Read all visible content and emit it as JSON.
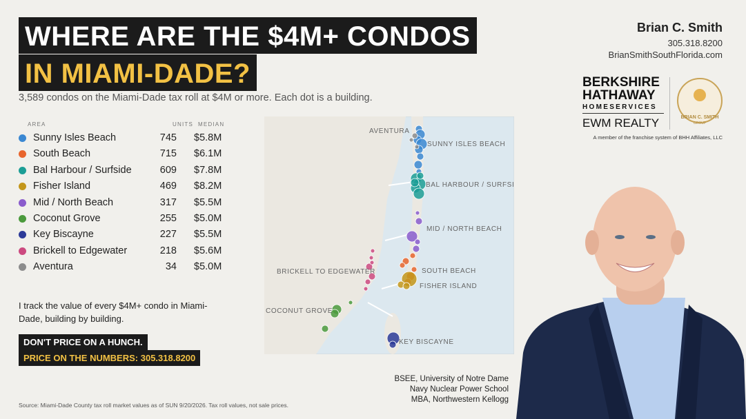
{
  "header": {
    "title_line1": "WHERE ARE THE $4M+ CONDOS",
    "title_line2": "IN MIAMI-DADE?",
    "subtitle": "3,589 condos on the Miami-Dade tax roll at $4M or more. Each dot is a building."
  },
  "contact": {
    "name": "Brian C. Smith",
    "phone": "305.318.8200",
    "website": "BrianSmithSouthFlorida.com"
  },
  "brokerage": {
    "line1": "BERKSHIRE",
    "line2": "HATHAWAY",
    "line3": "HOMESERVICES",
    "line4": "EWM REALTY",
    "badge_name": "BRIAN C. SMITH",
    "badge_group": "GROUP",
    "note": "A member of the franchise system of BHH Affiliates, LLC"
  },
  "table": {
    "columns": [
      "AREA",
      "UNITS",
      "MEDIAN"
    ],
    "rows": [
      {
        "area": "Sunny Isles Beach",
        "units": 745,
        "median": "$5.8M",
        "color": "#3b88d2"
      },
      {
        "area": "South Beach",
        "units": 715,
        "median": "$6.1M",
        "color": "#e8652d"
      },
      {
        "area": "Bal Harbour / Surfside",
        "units": 609,
        "median": "$7.8M",
        "color": "#1c9e96"
      },
      {
        "area": "Fisher Island",
        "units": 469,
        "median": "$8.2M",
        "color": "#c3961a"
      },
      {
        "area": "Mid / North Beach",
        "units": 317,
        "median": "$5.5M",
        "color": "#8a5ccc"
      },
      {
        "area": "Coconut Grove",
        "units": 255,
        "median": "$5.0M",
        "color": "#4b9a3d"
      },
      {
        "area": "Key Biscayne",
        "units": 227,
        "median": "$5.5M",
        "color": "#2c3a98"
      },
      {
        "area": "Brickell to Edgewater",
        "units": 218,
        "median": "$5.6M",
        "color": "#cc4a80"
      },
      {
        "area": "Aventura",
        "units": 34,
        "median": "$5.0M",
        "color": "#8c8c8c"
      }
    ]
  },
  "map": {
    "labels": [
      "AVENTURA",
      "SUNNY ISLES BEACH",
      "BAL HARBOUR / SURFSIDE",
      "MID / NORTH BEACH",
      "SOUTH BEACH",
      "FISHER ISLAND",
      "BRICKELL TO EDGEWATER",
      "COCONUT GROVE",
      "KEY BISCAYNE"
    ]
  },
  "pitch": "I track the value of every $4M+ condo in Miami-Dade, building by building.",
  "cta": {
    "line1": "DON'T PRICE ON A HUNCH.",
    "line2": "PRICE ON THE NUMBERS: 305.318.8200"
  },
  "credentials": [
    "BSEE, University of Notre Dame",
    "Navy Nuclear Power School",
    "MBA, Northwestern Kellogg"
  ],
  "source": "Source: Miami-Dade County tax roll market values as of SUN 9/20/2026. Tax roll values, not sale prices."
}
